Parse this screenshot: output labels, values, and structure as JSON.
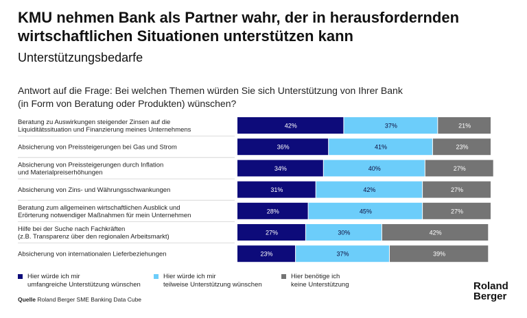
{
  "header": {
    "title_line1": "KMU nehmen Bank als Partner wahr, der in herausfordernden",
    "title_line2": "wirtschaftlichen Situationen unterstützen kann",
    "subtitle": "Unterstützungsbedarfe",
    "question_line1": "Antwort auf die Frage: Bei welchen Themen würden Sie sich Unterstützung von Ihrer Bank",
    "question_line2": "(in Form von Beratung oder Produkten) wünschen?"
  },
  "chart_data": {
    "type": "bar",
    "orientation": "horizontal",
    "stacked": true,
    "categories": [
      [
        "Beratung zu Auswirkungen steigender Zinsen auf die",
        "Liquiditätssituation und Finanzierung meines Unternehmens"
      ],
      [
        "Absicherung von Preissteigerungen bei Gas und Strom"
      ],
      [
        "Absicherung von Preissteigerungen durch Inflation",
        "und Materialpreiserhöhungen"
      ],
      [
        "Absicherung von Zins- und Währungsschwankungen"
      ],
      [
        "Beratung zum allgemeinen wirtschaftlichen Ausblick und",
        "Erörterung notwendiger Maßnahmen für mein Unternehmen"
      ],
      [
        "Hilfe bei der Suche nach Fachkräften",
        "(z.B. Transparenz über den regionalen Arbeitsmarkt)"
      ],
      [
        "Absicherung von internationalen Lieferbeziehungen"
      ]
    ],
    "series": [
      {
        "name": "Hier würde ich mir umfangreiche Unterstützung wünschen",
        "color": "#0d0b7a",
        "values": [
          42,
          36,
          34,
          31,
          28,
          27,
          23
        ]
      },
      {
        "name": "Hier würde ich mir teilweise Unterstützung wünschen",
        "color": "#6ccdfa",
        "values": [
          37,
          41,
          40,
          42,
          45,
          30,
          37
        ]
      },
      {
        "name": "Hier benötige ich keine Unterstützung",
        "color": "#747474",
        "values": [
          21,
          23,
          27,
          27,
          27,
          42,
          39
        ]
      }
    ],
    "value_suffix": "%",
    "xlim": [
      0,
      100
    ]
  },
  "legend": [
    {
      "line1": "Hier würde ich mir",
      "line2": "umfangreiche Unterstützung wünschen",
      "color": "#0d0b7a"
    },
    {
      "line1": "Hier würde ich mir",
      "line2": "teilweise Unterstützung wünschen",
      "color": "#6ccdfa"
    },
    {
      "line1": "Hier benötige ich",
      "line2": "keine Unterstützung",
      "color": "#747474"
    }
  ],
  "footer": {
    "source_label": "Quelle",
    "source_text": "Roland Berger SME Banking Data Cube",
    "logo_line1": "Roland",
    "logo_line2": "Berger"
  }
}
